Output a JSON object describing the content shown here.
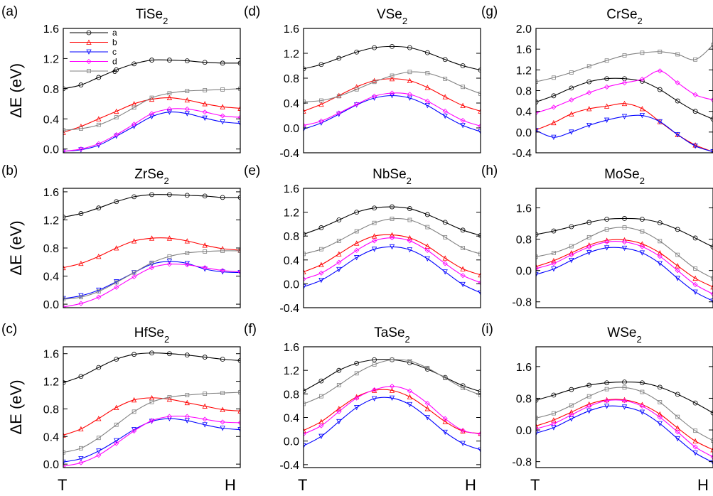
{
  "figure": {
    "ylabel": "ΔE (eV)",
    "x_start_label": "T",
    "x_end_label": "H",
    "legend": [
      {
        "name": "a",
        "color": "#000000",
        "marker": "circle"
      },
      {
        "name": "b",
        "color": "#ff0000",
        "marker": "triangle-up"
      },
      {
        "name": "c",
        "color": "#0000ff",
        "marker": "triangle-down"
      },
      {
        "name": "d",
        "color": "#ff00ff",
        "marker": "diamond"
      },
      {
        "name": "e",
        "color": "#808080",
        "marker": "square"
      }
    ]
  },
  "chart_data": [
    {
      "panel": "(a)",
      "title": "TiSe",
      "title_sub": "2",
      "type": "line",
      "x": [
        0,
        0.1,
        0.2,
        0.3,
        0.4,
        0.5,
        0.6,
        0.7,
        0.8,
        0.9,
        1.0
      ],
      "ylim": [
        -0.05,
        1.6
      ],
      "yticks": [
        "0.0",
        "0.4",
        "0.8",
        "1.2",
        "1.6"
      ],
      "series": [
        {
          "name": "a",
          "values": [
            0.8,
            0.85,
            0.95,
            1.05,
            1.13,
            1.18,
            1.18,
            1.17,
            1.15,
            1.14,
            1.14
          ]
        },
        {
          "name": "b",
          "values": [
            0.22,
            0.3,
            0.4,
            0.5,
            0.6,
            0.66,
            0.68,
            0.65,
            0.6,
            0.56,
            0.54
          ]
        },
        {
          "name": "c",
          "values": [
            -0.03,
            -0.01,
            0.05,
            0.17,
            0.3,
            0.43,
            0.49,
            0.47,
            0.41,
            0.36,
            0.34
          ]
        },
        {
          "name": "d",
          "values": [
            -0.03,
            0.0,
            0.07,
            0.19,
            0.33,
            0.47,
            0.53,
            0.53,
            0.49,
            0.44,
            0.42
          ]
        },
        {
          "name": "e",
          "values": [
            0.25,
            0.27,
            0.32,
            0.42,
            0.55,
            0.68,
            0.74,
            0.77,
            0.78,
            0.79,
            0.8
          ]
        }
      ]
    },
    {
      "panel": "(d)",
      "title": "VSe",
      "title_sub": "2",
      "type": "line",
      "x": [
        0,
        0.1,
        0.2,
        0.3,
        0.4,
        0.5,
        0.6,
        0.7,
        0.8,
        0.9,
        1.0
      ],
      "ylim": [
        -0.4,
        1.6
      ],
      "yticks": [
        "-0.4",
        "0.0",
        "0.4",
        "0.8",
        "1.2",
        "1.6"
      ],
      "series": [
        {
          "name": "a",
          "values": [
            0.95,
            1.02,
            1.12,
            1.22,
            1.29,
            1.31,
            1.29,
            1.21,
            1.1,
            1.0,
            0.93
          ]
        },
        {
          "name": "b",
          "values": [
            0.27,
            0.38,
            0.52,
            0.66,
            0.76,
            0.79,
            0.76,
            0.65,
            0.5,
            0.36,
            0.27
          ]
        },
        {
          "name": "c",
          "values": [
            -0.02,
            0.08,
            0.22,
            0.37,
            0.48,
            0.52,
            0.48,
            0.36,
            0.19,
            0.04,
            -0.06
          ]
        },
        {
          "name": "d",
          "values": [
            0.04,
            0.11,
            0.24,
            0.38,
            0.51,
            0.56,
            0.54,
            0.43,
            0.27,
            0.12,
            0.03
          ]
        },
        {
          "name": "e",
          "values": [
            0.42,
            0.44,
            0.51,
            0.62,
            0.74,
            0.84,
            0.9,
            0.88,
            0.79,
            0.66,
            0.55
          ]
        }
      ]
    },
    {
      "panel": "(g)",
      "title": "CrSe",
      "title_sub": "2",
      "type": "line",
      "x": [
        0,
        0.1,
        0.2,
        0.3,
        0.4,
        0.5,
        0.6,
        0.7,
        0.8,
        0.9,
        1.0
      ],
      "ylim": [
        -0.4,
        2.0
      ],
      "yticks": [
        "-0.4",
        "0.0",
        "0.4",
        "0.8",
        "1.2",
        "1.6",
        "2.0"
      ],
      "series": [
        {
          "name": "a",
          "values": [
            0.58,
            0.7,
            0.85,
            0.97,
            1.03,
            1.03,
            0.98,
            0.82,
            0.6,
            0.4,
            0.25
          ]
        },
        {
          "name": "b",
          "values": [
            0.04,
            0.18,
            0.35,
            0.45,
            0.5,
            0.55,
            0.45,
            0.2,
            -0.05,
            -0.25,
            -0.38
          ]
        },
        {
          "name": "c",
          "values": [
            0.03,
            -0.1,
            0.0,
            0.13,
            0.23,
            0.3,
            0.32,
            0.2,
            -0.05,
            -0.27,
            -0.38
          ]
        },
        {
          "name": "d",
          "values": [
            0.37,
            0.48,
            0.62,
            0.76,
            0.87,
            0.95,
            1.02,
            1.18,
            0.95,
            0.72,
            0.62
          ]
        },
        {
          "name": "e",
          "values": [
            0.97,
            1.05,
            1.15,
            1.27,
            1.38,
            1.48,
            1.53,
            1.55,
            1.5,
            1.4,
            1.68
          ]
        }
      ]
    },
    {
      "panel": "(b)",
      "title": "ZrSe",
      "title_sub": "2",
      "type": "line",
      "x": [
        0,
        0.1,
        0.2,
        0.3,
        0.4,
        0.5,
        0.6,
        0.7,
        0.8,
        0.9,
        1.0
      ],
      "ylim": [
        -0.05,
        1.65
      ],
      "yticks": [
        "0.0",
        "0.4",
        "0.8",
        "1.2",
        "1.6"
      ],
      "series": [
        {
          "name": "a",
          "values": [
            1.24,
            1.29,
            1.37,
            1.46,
            1.53,
            1.56,
            1.56,
            1.55,
            1.54,
            1.52,
            1.52
          ]
        },
        {
          "name": "b",
          "values": [
            0.52,
            0.58,
            0.68,
            0.8,
            0.9,
            0.94,
            0.94,
            0.9,
            0.84,
            0.79,
            0.77
          ]
        },
        {
          "name": "c",
          "values": [
            0.08,
            0.12,
            0.2,
            0.32,
            0.45,
            0.57,
            0.61,
            0.58,
            0.5,
            0.46,
            0.45
          ]
        },
        {
          "name": "d",
          "values": [
            -0.04,
            0.01,
            0.1,
            0.24,
            0.39,
            0.52,
            0.57,
            0.56,
            0.52,
            0.48,
            0.46
          ]
        },
        {
          "name": "e",
          "values": [
            0.07,
            0.1,
            0.18,
            0.31,
            0.45,
            0.59,
            0.68,
            0.73,
            0.75,
            0.76,
            0.76
          ]
        }
      ]
    },
    {
      "panel": "(e)",
      "title": "NbSe",
      "title_sub": "2",
      "type": "line",
      "x": [
        0,
        0.1,
        0.2,
        0.3,
        0.4,
        0.5,
        0.6,
        0.7,
        0.8,
        0.9,
        1.0
      ],
      "ylim": [
        -0.4,
        1.6
      ],
      "yticks": [
        "-0.4",
        "0.0",
        "0.4",
        "0.8",
        "1.2",
        "1.6"
      ],
      "series": [
        {
          "name": "a",
          "values": [
            0.83,
            0.94,
            1.07,
            1.2,
            1.27,
            1.29,
            1.26,
            1.16,
            1.03,
            0.9,
            0.81
          ]
        },
        {
          "name": "b",
          "values": [
            0.2,
            0.32,
            0.5,
            0.68,
            0.8,
            0.82,
            0.77,
            0.63,
            0.43,
            0.25,
            0.15
          ]
        },
        {
          "name": "c",
          "values": [
            -0.05,
            0.06,
            0.24,
            0.44,
            0.58,
            0.62,
            0.57,
            0.42,
            0.2,
            -0.01,
            -0.15
          ]
        },
        {
          "name": "d",
          "values": [
            0.08,
            0.18,
            0.36,
            0.56,
            0.72,
            0.77,
            0.72,
            0.56,
            0.34,
            0.14,
            0.02
          ]
        },
        {
          "name": "e",
          "values": [
            0.5,
            0.58,
            0.72,
            0.88,
            1.02,
            1.09,
            1.07,
            0.95,
            0.78,
            0.6,
            0.5
          ]
        }
      ]
    },
    {
      "panel": "(h)",
      "title": "MoSe",
      "title_sub": "2",
      "type": "line",
      "x": [
        0,
        0.1,
        0.2,
        0.3,
        0.4,
        0.5,
        0.6,
        0.7,
        0.8,
        0.9,
        1.0
      ],
      "ylim": [
        -0.95,
        2.1
      ],
      "yticks": [
        "-0.8",
        "0.0",
        "0.8",
        "1.6"
      ],
      "series": [
        {
          "name": "a",
          "values": [
            0.92,
            1.01,
            1.12,
            1.23,
            1.31,
            1.33,
            1.31,
            1.22,
            1.05,
            0.83,
            0.6
          ]
        },
        {
          "name": "b",
          "values": [
            0.1,
            0.25,
            0.45,
            0.65,
            0.77,
            0.78,
            0.68,
            0.45,
            0.12,
            -0.2,
            -0.42
          ]
        },
        {
          "name": "c",
          "values": [
            -0.1,
            0.04,
            0.26,
            0.46,
            0.58,
            0.57,
            0.45,
            0.18,
            -0.2,
            -0.55,
            -0.78
          ]
        },
        {
          "name": "d",
          "values": [
            0.05,
            0.18,
            0.4,
            0.6,
            0.73,
            0.73,
            0.61,
            0.36,
            0.0,
            -0.36,
            -0.6
          ]
        },
        {
          "name": "e",
          "values": [
            0.35,
            0.45,
            0.62,
            0.85,
            1.05,
            1.1,
            1.0,
            0.75,
            0.4,
            0.05,
            -0.2
          ]
        }
      ]
    },
    {
      "panel": "(c)",
      "title": "HfSe",
      "title_sub": "2",
      "type": "line",
      "x": [
        0,
        0.1,
        0.2,
        0.3,
        0.4,
        0.5,
        0.6,
        0.7,
        0.8,
        0.9,
        1.0
      ],
      "ylim": [
        -0.05,
        1.7
      ],
      "yticks": [
        "0.0",
        "0.4",
        "0.8",
        "1.2",
        "1.6"
      ],
      "series": [
        {
          "name": "a",
          "values": [
            1.18,
            1.27,
            1.4,
            1.52,
            1.59,
            1.61,
            1.6,
            1.58,
            1.55,
            1.52,
            1.5
          ]
        },
        {
          "name": "b",
          "values": [
            0.42,
            0.51,
            0.66,
            0.82,
            0.93,
            0.96,
            0.94,
            0.89,
            0.84,
            0.79,
            0.77
          ]
        },
        {
          "name": "c",
          "values": [
            0.03,
            0.08,
            0.19,
            0.34,
            0.5,
            0.62,
            0.66,
            0.63,
            0.57,
            0.52,
            0.5
          ]
        },
        {
          "name": "d",
          "values": [
            -0.03,
            0.02,
            0.13,
            0.3,
            0.48,
            0.63,
            0.69,
            0.69,
            0.65,
            0.61,
            0.6
          ]
        },
        {
          "name": "e",
          "values": [
            0.17,
            0.23,
            0.38,
            0.57,
            0.76,
            0.9,
            0.97,
            1.0,
            1.02,
            1.03,
            1.04
          ]
        }
      ]
    },
    {
      "panel": "(f)",
      "title": "TaSe",
      "title_sub": "2",
      "type": "line",
      "x": [
        0,
        0.1,
        0.2,
        0.3,
        0.4,
        0.5,
        0.6,
        0.7,
        0.8,
        0.9,
        1.0
      ],
      "ylim": [
        -0.45,
        1.6
      ],
      "yticks": [
        "-0.4",
        "0.0",
        "0.4",
        "0.8",
        "1.2",
        "1.6"
      ],
      "series": [
        {
          "name": "a",
          "values": [
            0.85,
            1.02,
            1.2,
            1.32,
            1.38,
            1.38,
            1.33,
            1.22,
            1.08,
            0.94,
            0.84
          ]
        },
        {
          "name": "b",
          "values": [
            0.18,
            0.33,
            0.55,
            0.75,
            0.86,
            0.86,
            0.75,
            0.55,
            0.33,
            0.17,
            0.13
          ]
        },
        {
          "name": "c",
          "values": [
            -0.08,
            0.08,
            0.33,
            0.57,
            0.72,
            0.73,
            0.62,
            0.4,
            0.15,
            -0.04,
            -0.15
          ]
        },
        {
          "name": "d",
          "values": [
            0.12,
            0.26,
            0.5,
            0.73,
            0.87,
            0.93,
            0.85,
            0.64,
            0.38,
            0.18,
            0.12
          ]
        },
        {
          "name": "e",
          "values": [
            0.63,
            0.76,
            0.95,
            1.15,
            1.3,
            1.38,
            1.36,
            1.24,
            1.07,
            0.9,
            0.78
          ]
        }
      ]
    },
    {
      "panel": "(i)",
      "title": "WSe",
      "title_sub": "2",
      "type": "line",
      "x": [
        0,
        0.1,
        0.2,
        0.3,
        0.4,
        0.5,
        0.6,
        0.7,
        0.8,
        0.9,
        1.0
      ],
      "ylim": [
        -0.95,
        2.1
      ],
      "yticks": [
        "-0.8",
        "0.0",
        "0.8",
        "1.6"
      ],
      "series": [
        {
          "name": "a",
          "values": [
            0.75,
            0.88,
            1.02,
            1.13,
            1.19,
            1.21,
            1.19,
            1.08,
            0.9,
            0.68,
            0.43
          ]
        },
        {
          "name": "b",
          "values": [
            0.1,
            0.25,
            0.45,
            0.65,
            0.76,
            0.76,
            0.64,
            0.4,
            0.05,
            -0.28,
            -0.5
          ]
        },
        {
          "name": "c",
          "values": [
            -0.08,
            0.06,
            0.28,
            0.48,
            0.6,
            0.58,
            0.45,
            0.16,
            -0.22,
            -0.58,
            -0.82
          ]
        },
        {
          "name": "d",
          "values": [
            0.03,
            0.16,
            0.38,
            0.6,
            0.74,
            0.74,
            0.6,
            0.32,
            -0.05,
            -0.43,
            -0.68
          ]
        },
        {
          "name": "e",
          "values": [
            0.3,
            0.42,
            0.62,
            0.85,
            1.03,
            1.07,
            0.96,
            0.7,
            0.33,
            -0.02,
            -0.27
          ]
        }
      ]
    }
  ]
}
